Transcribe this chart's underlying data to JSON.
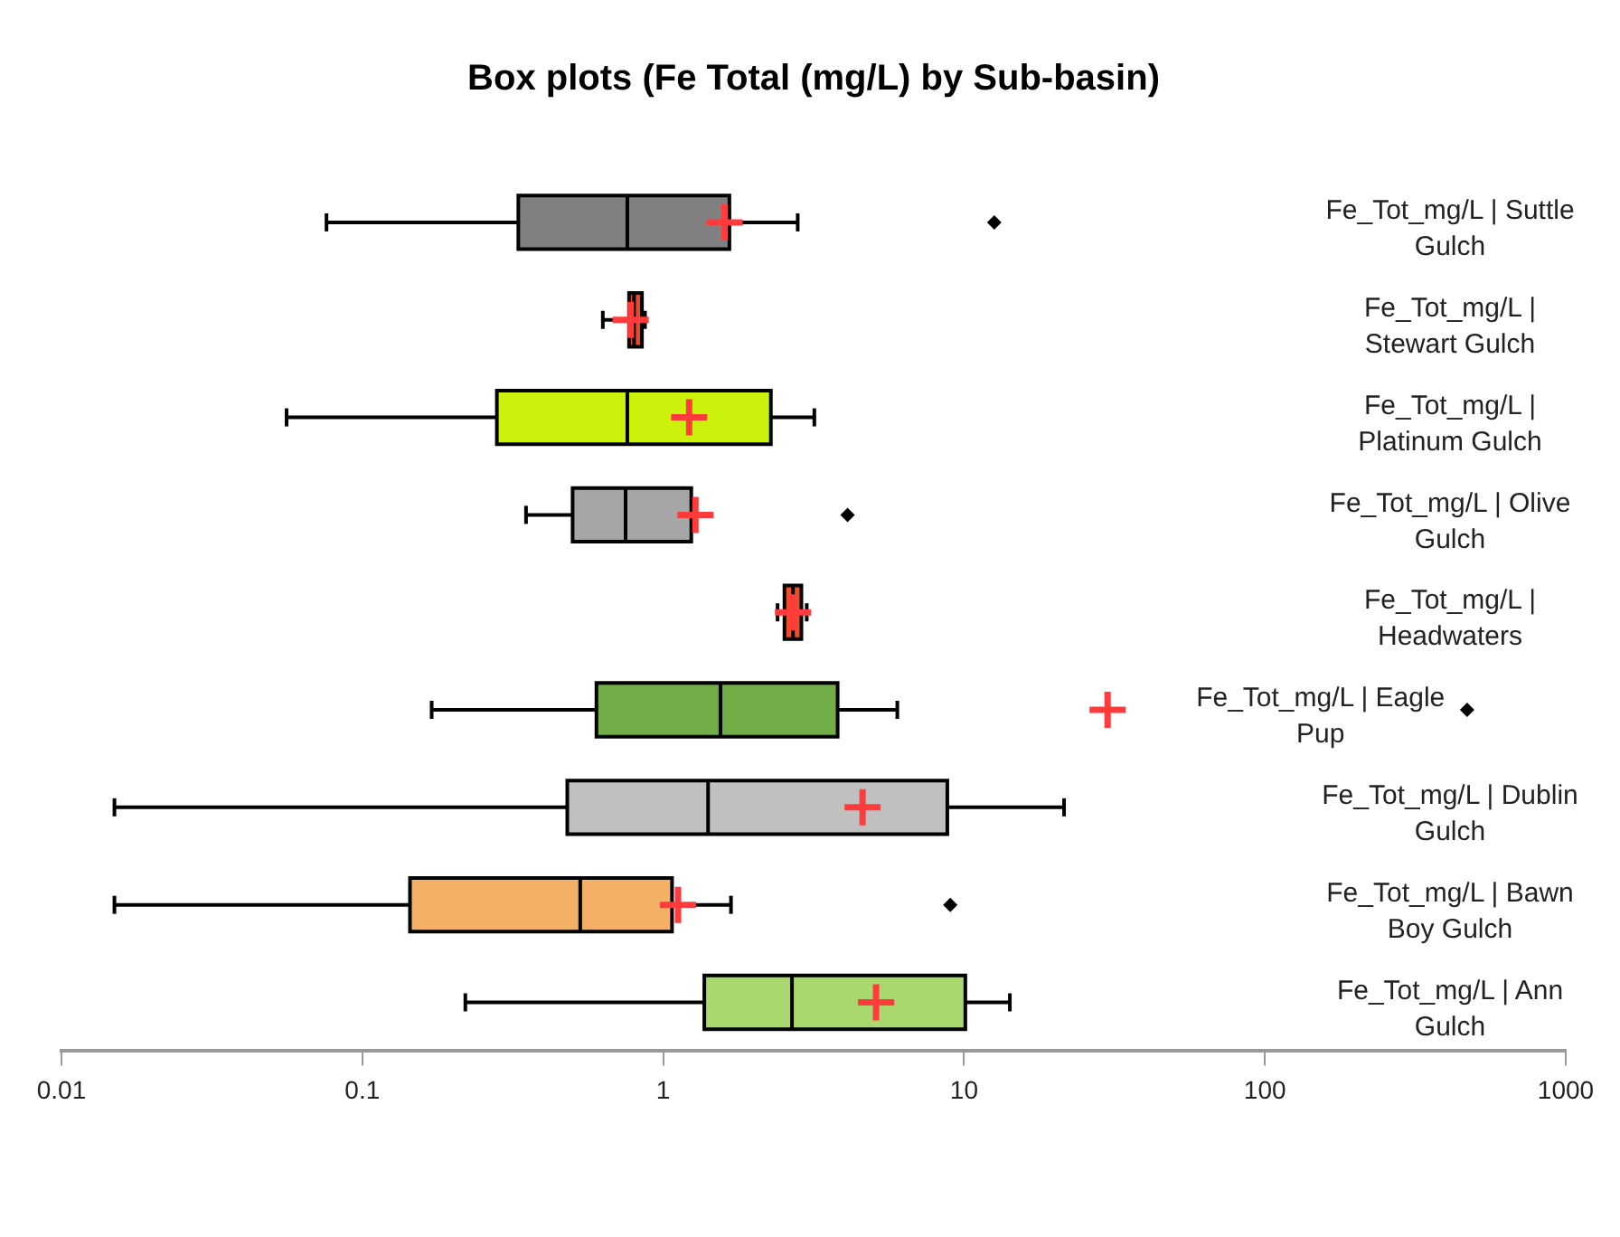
{
  "chart_data": {
    "type": "box",
    "orientation": "horizontal",
    "log": "x",
    "title": "Box plots (Fe Total (mg/L) by Sub-basin)",
    "categories": [
      "Fe_Tot_mg/L | Suttle Gulch",
      "Fe_Tot_mg/L | Stewart Gulch",
      "Fe_Tot_mg/L | Platinum Gulch",
      "Fe_Tot_mg/L | Olive Gulch",
      "Fe_Tot_mg/L | Headwaters",
      "Fe_Tot_mg/L | Eagle Pup",
      "Fe_Tot_mg/L | Dublin Gulch",
      "Fe_Tot_mg/L | Bawn Boy Gulch",
      "Fe_Tot_mg/L | Ann Gulch"
    ],
    "colors": [
      "#808080",
      "#e8472a",
      "#ccf20c",
      "#a6a6a6",
      "#f04e23",
      "#70ad47",
      "#c0c0c0",
      "#f4b066",
      "#a9d86e"
    ],
    "boxes": [
      {
        "low": 0.076,
        "q1": 0.33,
        "median": 0.76,
        "q3": 1.66,
        "high": 2.8,
        "mean": 1.6,
        "outliers": [
          12.6
        ]
      },
      {
        "low": 0.63,
        "q1": 0.77,
        "median": 0.8,
        "q3": 0.85,
        "high": 0.87,
        "mean": 0.78
      },
      {
        "low": 0.056,
        "q1": 0.28,
        "median": 0.76,
        "q3": 2.28,
        "high": 3.18,
        "mean": 1.22
      },
      {
        "low": 0.35,
        "q1": 0.5,
        "median": 0.75,
        "q3": 1.24,
        "high": 1.24,
        "mean": 1.28,
        "outliers": [
          4.1
        ]
      },
      {
        "low": 2.4,
        "q1": 2.53,
        "median": 2.7,
        "q3": 2.88,
        "high": 3.0,
        "mean": 2.7
      },
      {
        "low": 0.17,
        "q1": 0.6,
        "median": 1.55,
        "q3": 3.8,
        "high": 6.0,
        "mean": 30,
        "outliers": [
          470
        ]
      },
      {
        "low": 0.015,
        "q1": 0.48,
        "median": 1.41,
        "q3": 8.8,
        "high": 21.5,
        "mean": 4.6
      },
      {
        "low": 0.015,
        "q1": 0.144,
        "median": 0.53,
        "q3": 1.07,
        "high": 1.68,
        "mean": 1.12,
        "outliers": [
          9.0
        ]
      },
      {
        "low": 0.22,
        "q1": 1.37,
        "median": 2.68,
        "q3": 10.1,
        "high": 14.2,
        "mean": 5.1
      }
    ],
    "xlim": [
      0.01,
      1000
    ],
    "xticks": [
      0.01,
      0.1,
      1,
      10,
      100,
      1000
    ]
  }
}
